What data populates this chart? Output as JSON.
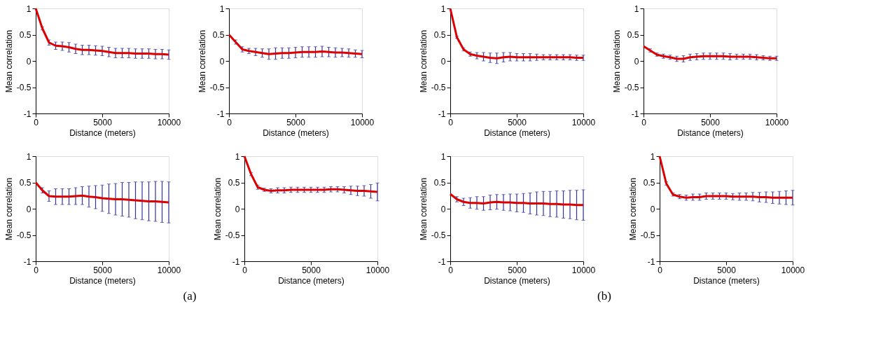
{
  "chart_data": [
    {
      "type": "line",
      "xlabel": "Distance (meters)",
      "ylabel": "Mean correlation",
      "x": [
        0,
        500,
        1000,
        1500,
        2000,
        2500,
        3000,
        3500,
        4000,
        4500,
        5000,
        5500,
        6000,
        6500,
        7000,
        7500,
        8000,
        8500,
        9000,
        9500,
        10000
      ],
      "xlim": [
        0,
        10000
      ],
      "ylim": [
        -1,
        1
      ],
      "xticks": [
        0,
        5000,
        10000
      ],
      "yticks": [
        -1,
        -0.5,
        0,
        0.5,
        1
      ],
      "grid": false,
      "marker": "none",
      "line_style": "solid",
      "series": [
        {
          "color": "#dd0000",
          "values": [
            1.0,
            0.62,
            0.35,
            0.29,
            0.28,
            0.26,
            0.23,
            0.21,
            0.21,
            0.2,
            0.19,
            0.17,
            0.15,
            0.15,
            0.15,
            0.14,
            0.14,
            0.14,
            0.13,
            0.13,
            0.12
          ],
          "errors": [
            null,
            0.03,
            0.05,
            0.07,
            0.08,
            0.09,
            0.09,
            0.09,
            0.09,
            0.09,
            0.09,
            0.09,
            0.09,
            0.09,
            0.09,
            0.09,
            0.09,
            0.09,
            0.09,
            0.09,
            0.09
          ]
        }
      ]
    },
    {
      "type": "line",
      "xlabel": "Distance (meters)",
      "ylabel": "Mean correlation",
      "x": [
        0,
        500,
        1000,
        1500,
        2000,
        2500,
        3000,
        3500,
        4000,
        4500,
        5000,
        5500,
        6000,
        6500,
        7000,
        7500,
        8000,
        8500,
        9000,
        9500,
        10000
      ],
      "xlim": [
        0,
        10000
      ],
      "ylim": [
        -1,
        1
      ],
      "xticks": [
        0,
        5000,
        10000
      ],
      "yticks": [
        -1,
        -0.5,
        0,
        0.5,
        1
      ],
      "grid": false,
      "marker": "none",
      "line_style": "solid",
      "series": [
        {
          "color": "#dd0000",
          "values": [
            0.5,
            0.36,
            0.22,
            0.19,
            0.17,
            0.15,
            0.13,
            0.14,
            0.15,
            0.15,
            0.16,
            0.17,
            0.17,
            0.17,
            0.18,
            0.17,
            0.16,
            0.16,
            0.15,
            0.14,
            0.13
          ],
          "errors": [
            null,
            0.04,
            0.05,
            0.05,
            0.07,
            0.08,
            0.1,
            0.11,
            0.1,
            0.1,
            0.1,
            0.1,
            0.1,
            0.1,
            0.1,
            0.09,
            0.09,
            0.08,
            0.08,
            0.07,
            0.07
          ]
        }
      ]
    },
    {
      "type": "line",
      "xlabel": "Distance (meters)",
      "ylabel": "Mean correlation",
      "x": [
        0,
        500,
        1000,
        1500,
        2000,
        2500,
        3000,
        3500,
        4000,
        4500,
        5000,
        5500,
        6000,
        6500,
        7000,
        7500,
        8000,
        8500,
        9000,
        9500,
        10000
      ],
      "xlim": [
        0,
        10000
      ],
      "ylim": [
        -1,
        1
      ],
      "xticks": [
        0,
        5000,
        10000
      ],
      "yticks": [
        -1,
        -0.5,
        0,
        0.5,
        1
      ],
      "grid": false,
      "marker": "none",
      "line_style": "solid",
      "annotations": [
        "(a)"
      ],
      "series": [
        {
          "color": "#dd0000",
          "values": [
            0.5,
            0.35,
            0.24,
            0.23,
            0.23,
            0.23,
            0.24,
            0.25,
            0.23,
            0.22,
            0.2,
            0.19,
            0.18,
            0.18,
            0.17,
            0.16,
            0.15,
            0.14,
            0.14,
            0.13,
            0.12
          ],
          "errors": [
            null,
            0.05,
            0.1,
            0.15,
            0.15,
            0.15,
            0.16,
            0.17,
            0.2,
            0.22,
            0.25,
            0.28,
            0.3,
            0.32,
            0.33,
            0.35,
            0.36,
            0.37,
            0.38,
            0.39,
            0.39
          ]
        }
      ]
    },
    {
      "type": "line",
      "xlabel": "Distance (meters)",
      "ylabel": "Mean correlation",
      "x": [
        0,
        500,
        1000,
        1500,
        2000,
        2500,
        3000,
        3500,
        4000,
        4500,
        5000,
        5500,
        6000,
        6500,
        7000,
        7500,
        8000,
        8500,
        9000,
        9500,
        10000
      ],
      "xlim": [
        0,
        10000
      ],
      "ylim": [
        -1,
        1
      ],
      "xticks": [
        0,
        5000,
        10000
      ],
      "yticks": [
        -1,
        -0.5,
        0,
        0.5,
        1
      ],
      "grid": false,
      "marker": "none",
      "line_style": "solid",
      "series": [
        {
          "color": "#dd0000",
          "values": [
            1.0,
            0.66,
            0.41,
            0.36,
            0.34,
            0.35,
            0.35,
            0.36,
            0.36,
            0.36,
            0.36,
            0.36,
            0.36,
            0.37,
            0.37,
            0.36,
            0.35,
            0.34,
            0.34,
            0.33,
            0.32
          ],
          "errors": [
            null,
            0.03,
            0.04,
            0.03,
            0.04,
            0.05,
            0.05,
            0.05,
            0.05,
            0.05,
            0.05,
            0.05,
            0.05,
            0.05,
            0.05,
            0.06,
            0.08,
            0.09,
            0.1,
            0.13,
            0.17
          ]
        }
      ]
    },
    {
      "type": "line",
      "xlabel": "Distance (meters)",
      "ylabel": "Mean correlation",
      "x": [
        0,
        500,
        1000,
        1500,
        2000,
        2500,
        3000,
        3500,
        4000,
        4500,
        5000,
        5500,
        6000,
        6500,
        7000,
        7500,
        8000,
        8500,
        9000,
        9500,
        10000
      ],
      "xlim": [
        0,
        10000
      ],
      "ylim": [
        -1,
        1
      ],
      "xticks": [
        0,
        5000,
        10000
      ],
      "yticks": [
        -1,
        -0.5,
        0,
        0.5,
        1
      ],
      "grid": false,
      "marker": "none",
      "line_style": "solid",
      "series": [
        {
          "color": "#dd0000",
          "values": [
            1.0,
            0.45,
            0.22,
            0.13,
            0.1,
            0.08,
            0.06,
            0.05,
            0.07,
            0.08,
            0.07,
            0.07,
            0.07,
            0.07,
            0.07,
            0.07,
            0.07,
            0.07,
            0.07,
            0.06,
            0.06
          ],
          "errors": [
            null,
            0.02,
            0.03,
            0.04,
            0.06,
            0.08,
            0.09,
            0.1,
            0.09,
            0.08,
            0.07,
            0.07,
            0.07,
            0.06,
            0.05,
            0.05,
            0.05,
            0.05,
            0.05,
            0.05,
            0.05
          ]
        }
      ]
    },
    {
      "type": "line",
      "xlabel": "Distance (meters)",
      "ylabel": "Mean correlation",
      "x": [
        0,
        500,
        1000,
        1500,
        2000,
        2500,
        3000,
        3500,
        4000,
        4500,
        5000,
        5500,
        6000,
        6500,
        7000,
        7500,
        8000,
        8500,
        9000,
        9500,
        10000
      ],
      "xlim": [
        0,
        10000
      ],
      "ylim": [
        -1,
        1
      ],
      "xticks": [
        0,
        5000,
        10000
      ],
      "yticks": [
        -1,
        -0.5,
        0,
        0.5,
        1
      ],
      "grid": false,
      "marker": "none",
      "line_style": "solid",
      "series": [
        {
          "color": "#dd0000",
          "values": [
            0.28,
            0.2,
            0.12,
            0.09,
            0.07,
            0.04,
            0.04,
            0.07,
            0.08,
            0.09,
            0.09,
            0.09,
            0.09,
            0.08,
            0.08,
            0.08,
            0.08,
            0.07,
            0.06,
            0.05,
            0.05
          ],
          "errors": [
            null,
            0.03,
            0.03,
            0.04,
            0.04,
            0.05,
            0.06,
            0.06,
            0.06,
            0.06,
            0.06,
            0.06,
            0.06,
            0.06,
            0.05,
            0.05,
            0.05,
            0.05,
            0.04,
            0.04,
            0.04
          ]
        }
      ]
    },
    {
      "type": "line",
      "xlabel": "Distance (meters)",
      "ylabel": "Mean correlation",
      "x": [
        0,
        500,
        1000,
        1500,
        2000,
        2500,
        3000,
        3500,
        4000,
        4500,
        5000,
        5500,
        6000,
        6500,
        7000,
        7500,
        8000,
        8500,
        9000,
        9500,
        10000
      ],
      "xlim": [
        0,
        10000
      ],
      "ylim": [
        -1,
        1
      ],
      "xticks": [
        0,
        5000,
        10000
      ],
      "yticks": [
        -1,
        -0.5,
        0,
        0.5,
        1
      ],
      "grid": false,
      "marker": "none",
      "line_style": "solid",
      "annotations": [
        "(b)"
      ],
      "series": [
        {
          "color": "#dd0000",
          "values": [
            0.28,
            0.18,
            0.13,
            0.11,
            0.11,
            0.1,
            0.12,
            0.13,
            0.12,
            0.12,
            0.11,
            0.11,
            0.1,
            0.1,
            0.1,
            0.09,
            0.09,
            0.08,
            0.08,
            0.07,
            0.07
          ],
          "errors": [
            null,
            0.05,
            0.07,
            0.1,
            0.12,
            0.13,
            0.14,
            0.14,
            0.15,
            0.16,
            0.17,
            0.18,
            0.2,
            0.22,
            0.23,
            0.24,
            0.25,
            0.26,
            0.27,
            0.28,
            0.29
          ]
        }
      ]
    },
    {
      "type": "line",
      "xlabel": "Distance (meters)",
      "ylabel": "Mean correlation",
      "x": [
        0,
        500,
        1000,
        1500,
        2000,
        2500,
        3000,
        3500,
        4000,
        4500,
        5000,
        5500,
        6000,
        6500,
        7000,
        7500,
        8000,
        8500,
        9000,
        9500,
        10000
      ],
      "xlim": [
        0,
        10000
      ],
      "ylim": [
        -1,
        1
      ],
      "xticks": [
        0,
        5000,
        10000
      ],
      "yticks": [
        -1,
        -0.5,
        0,
        0.5,
        1
      ],
      "grid": false,
      "marker": "none",
      "line_style": "solid",
      "series": [
        {
          "color": "#dd0000",
          "values": [
            1.0,
            0.48,
            0.27,
            0.23,
            0.21,
            0.22,
            0.22,
            0.24,
            0.24,
            0.24,
            0.24,
            0.23,
            0.23,
            0.23,
            0.23,
            0.22,
            0.22,
            0.21,
            0.21,
            0.21,
            0.21
          ],
          "errors": [
            null,
            0.03,
            0.03,
            0.04,
            0.05,
            0.06,
            0.06,
            0.06,
            0.06,
            0.06,
            0.06,
            0.06,
            0.07,
            0.07,
            0.08,
            0.09,
            0.1,
            0.11,
            0.12,
            0.13,
            0.14
          ]
        }
      ]
    }
  ]
}
